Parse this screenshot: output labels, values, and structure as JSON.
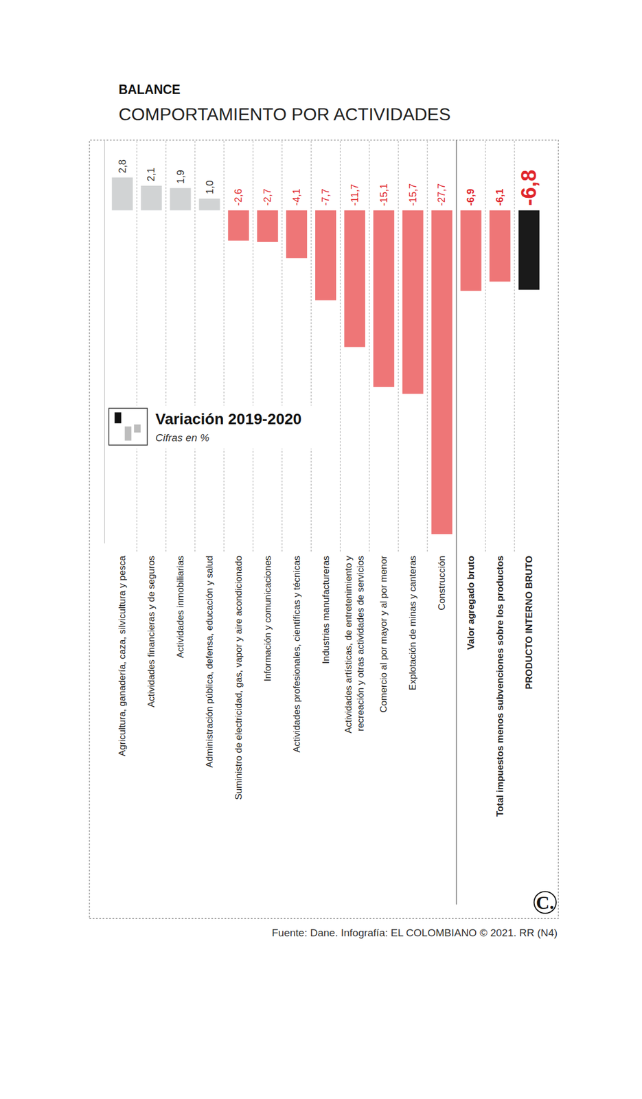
{
  "chart_data": {
    "type": "bar",
    "title": "BALANCE",
    "subtitle": "COMPORTAMIENTO POR ACTIVIDADES",
    "annotations": [
      "Variación 2019-2020",
      "Cifras en %"
    ],
    "source": "Fuente: Dane. Infografía: EL COLOMBIANO © 2021. RR (N4)",
    "logo": "C.",
    "categories": [
      "Agricultura, ganadería, caza, silvicultura y pesca",
      "Actividades financieras y de seguros",
      "Actividades inmobiliarias",
      "Administración pública, defensa, educación y salud",
      "Suministro de electricidad, gas, vapor y aire acondicionado",
      "Información y comunicaciones",
      "Actividades profesionales, científicas y técnicas",
      "Industrias manufactureras",
      "Actividades artísticas, de entretenimiento y recreación y otras actividades de servicios",
      "Comercio al por mayor y al por menor",
      "Explotación de minas y canteras",
      "Construcción",
      "Valor agregado bruto",
      "Total impuestos menos subvenciones sobre los productos",
      "PRODUCTO INTERNO BRUTO"
    ],
    "values": [
      2.8,
      2.1,
      1.9,
      1.0,
      -2.6,
      -2.7,
      -4.1,
      -7.7,
      -11.7,
      -15.1,
      -15.7,
      -27.7,
      -6.9,
      -6.1,
      -6.8
    ],
    "value_labels": [
      "2,8",
      "2,1",
      "1,9",
      "1,0",
      "-2,6",
      "-2,7",
      "-4,1",
      "-7,7",
      "-11,7",
      "-15,1",
      "-15,7",
      "-27,7",
      "-6,9",
      "-6,1",
      "-6,8"
    ],
    "colors": [
      "#d1d3d4",
      "#d1d3d4",
      "#d1d3d4",
      "#d1d3d4",
      "#ee7677",
      "#ee7677",
      "#ee7677",
      "#ee7677",
      "#ee7677",
      "#ee7677",
      "#ee7677",
      "#ee7677",
      "#ee7677",
      "#ee7677",
      "#1a1a1a"
    ],
    "ylim": [
      -28.5,
      6
    ],
    "yticks": [],
    "tick_labels": "x",
    "data_labels": true,
    "grid": true
  }
}
